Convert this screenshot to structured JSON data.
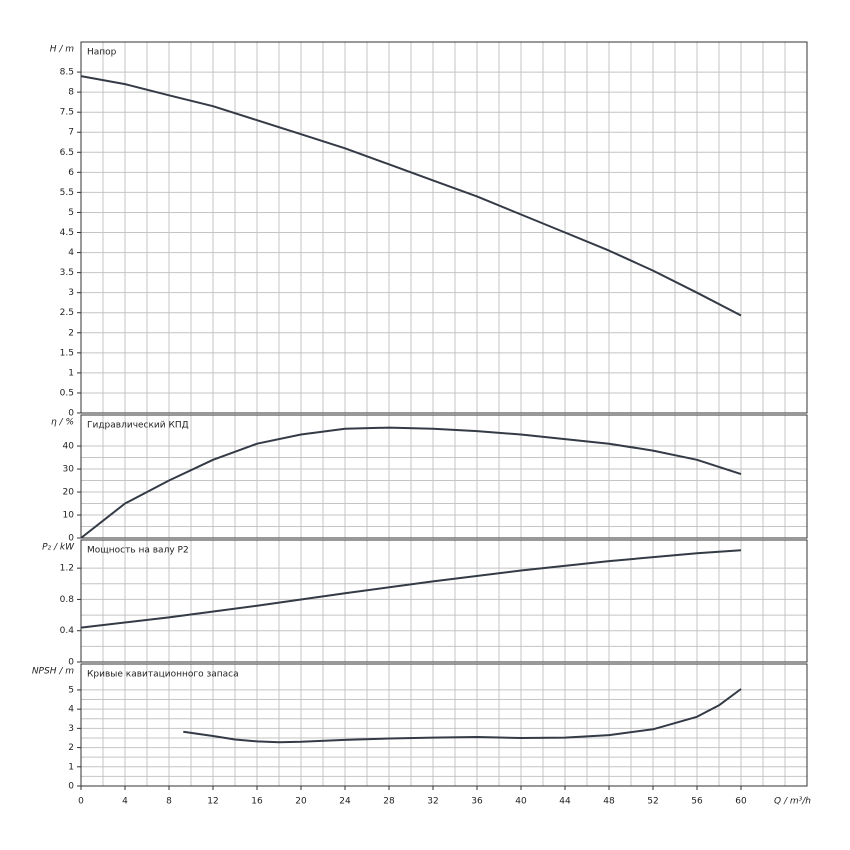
{
  "chart_data": [
    {
      "type": "line",
      "title": "Напор",
      "y_label": "H / m",
      "color": "#343b46",
      "grid": true,
      "minor_grid": false,
      "xlim": [
        0,
        66
      ],
      "ylim": [
        0,
        9.25
      ],
      "yticks": [
        0,
        0.5,
        1,
        1.5,
        2,
        2.5,
        3,
        3.5,
        4,
        4.5,
        5,
        5.5,
        6,
        6.5,
        7,
        7.5,
        8,
        8.5
      ],
      "x": [
        0,
        4,
        8,
        12,
        16,
        20,
        24,
        28,
        32,
        36,
        40,
        44,
        48,
        52,
        56,
        60
      ],
      "values": [
        8.4,
        8.2,
        7.92,
        7.65,
        7.3,
        6.95,
        6.6,
        6.2,
        5.8,
        5.4,
        4.95,
        4.5,
        4.05,
        3.55,
        3.0,
        2.43
      ]
    },
    {
      "type": "line",
      "title": "Гидравлический КПД",
      "y_label": "η / %",
      "color": "#343b46",
      "grid": true,
      "minor_grid": true,
      "xlim": [
        0,
        66
      ],
      "ylim": [
        0,
        53.5
      ],
      "yticks": [
        0,
        10,
        20,
        30,
        40
      ],
      "x": [
        0,
        4,
        8,
        12,
        16,
        20,
        24,
        28,
        32,
        36,
        40,
        44,
        48,
        52,
        56,
        60
      ],
      "values": [
        0,
        15,
        25,
        34,
        41,
        45,
        47.5,
        48,
        47.5,
        46.5,
        45,
        43,
        41,
        38,
        34,
        27.8
      ]
    },
    {
      "type": "line",
      "title": "Мощность на валу P2",
      "y_label": "P₂ / kW",
      "color": "#343b46",
      "grid": true,
      "minor_grid": true,
      "xlim": [
        0,
        66
      ],
      "ylim": [
        0,
        1.56
      ],
      "yticks": [
        0,
        0.4,
        0.8,
        1.2
      ],
      "x": [
        0,
        8,
        16,
        24,
        32,
        40,
        48,
        56,
        60
      ],
      "values": [
        0.44,
        0.57,
        0.72,
        0.88,
        1.03,
        1.17,
        1.29,
        1.39,
        1.43
      ]
    },
    {
      "type": "line",
      "title": "Кривые кавитационного запаса",
      "y_label": "NPSH / m",
      "x_label": "Q / m³/h",
      "color": "#343b46",
      "grid": true,
      "minor_grid": true,
      "xlim": [
        0,
        66
      ],
      "ylim": [
        0,
        6.35
      ],
      "yticks": [
        0,
        1,
        2,
        3,
        4,
        5
      ],
      "xticks": [
        0,
        4,
        8,
        12,
        16,
        20,
        24,
        28,
        32,
        36,
        40,
        44,
        48,
        52,
        56,
        60
      ],
      "x": [
        9.3,
        12,
        14,
        16,
        18,
        20,
        24,
        28,
        32,
        36,
        40,
        44,
        48,
        52,
        56,
        58,
        60
      ],
      "values": [
        2.82,
        2.6,
        2.42,
        2.32,
        2.28,
        2.3,
        2.4,
        2.47,
        2.52,
        2.55,
        2.5,
        2.52,
        2.65,
        2.95,
        3.6,
        4.2,
        5.05
      ]
    }
  ]
}
